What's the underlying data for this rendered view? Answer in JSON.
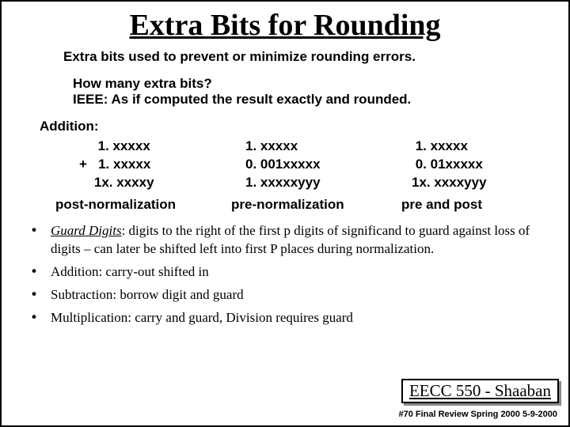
{
  "title": "Extra Bits for Rounding",
  "intro": "Extra bits used to prevent or minimize rounding errors.",
  "q1": "How many extra bits?",
  "q2": "IEEE: As if computed the result exactly and rounded.",
  "addition_label": "Addition:",
  "col1": {
    "r1": "     1. xxxxx",
    "r2": "+   1. xxxxx",
    "r3": "    1x. xxxxy",
    "label": "post-normalization"
  },
  "col2": {
    "r1": "1. xxxxx",
    "r2": "0. 001xxxxx",
    "r3": "1. xxxxxyyy",
    "label": "pre-normalization"
  },
  "col3": {
    "r1": " 1. xxxxx",
    "r2": " 0. 01xxxxx",
    "r3": "1x. xxxxyyy",
    "label": "pre and post"
  },
  "bullets": {
    "b1_label": "Guard Digits",
    "b1_rest": ": digits to the right of the first p digits of significand to guard against loss of digits – can later be shifted left into first P places during normalization.",
    "b2": "Addition: carry-out shifted in",
    "b3": "Subtraction: borrow digit and guard",
    "b4": "Multiplication: carry and guard,   Division requires guard"
  },
  "footer_box": "EECC 550 - Shaaban",
  "footer_line": "#70   Final Review    Spring 2000    5-9-2000"
}
